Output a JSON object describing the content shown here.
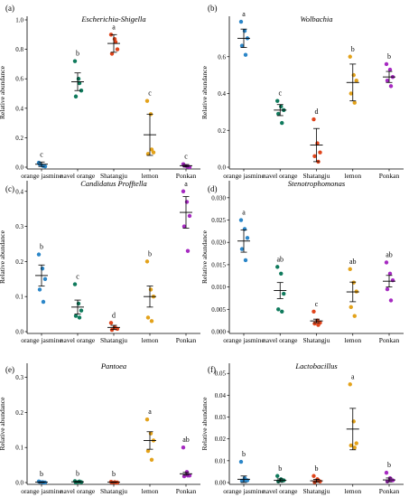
{
  "chart_data": [
    {
      "type": "scatter",
      "panel": "(a)",
      "title": "Escherichia-Shigella",
      "ylabel": "Relative abundance",
      "categories": [
        "orange jasmine",
        "navel orange",
        "Shatangju",
        "lemon",
        "Ponkan"
      ],
      "ylim": [
        0,
        1.0
      ],
      "yticks": [
        0.0,
        0.2,
        0.4,
        0.6,
        0.8,
        1.0
      ],
      "ytick_labels": [
        "0.0",
        "0.2",
        "0.4",
        "0.6",
        "0.8",
        "1.0"
      ],
      "colors": [
        "#2b86c8",
        "#0f7a5c",
        "#e0451c",
        "#e3a21a",
        "#a62ac1"
      ],
      "points": [
        [
          0.03,
          0.01,
          0.005,
          0.02,
          0.008
        ],
        [
          0.72,
          0.6,
          0.52,
          0.48,
          0.57
        ],
        [
          0.9,
          0.87,
          0.8,
          0.77,
          0.85
        ],
        [
          0.45,
          0.36,
          0.1,
          0.09,
          0.12
        ],
        [
          0.02,
          0.005,
          0.0,
          0.01,
          0.003
        ]
      ],
      "means": [
        0.02,
        0.58,
        0.84,
        0.22,
        0.01
      ],
      "errors": [
        0.015,
        0.06,
        0.06,
        0.14,
        0.008
      ],
      "letters": [
        "c",
        "b",
        "a",
        "c",
        "c"
      ]
    },
    {
      "type": "scatter",
      "panel": "(b)",
      "title": "Wolbachia",
      "ylabel": "Relative abundance",
      "categories": [
        "orange jasmine",
        "navel orange",
        "Shatangju",
        "lemon",
        "Ponkan"
      ],
      "ylim": [
        0,
        0.8
      ],
      "yticks": [
        0.0,
        0.2,
        0.4,
        0.6
      ],
      "ytick_labels": [
        "0.0",
        "0.2",
        "0.4",
        "0.6"
      ],
      "colors": [
        "#2b86c8",
        "#0f7a5c",
        "#e0451c",
        "#e3a21a",
        "#a62ac1"
      ],
      "points": [
        [
          0.79,
          0.74,
          0.7,
          0.66,
          0.61
        ],
        [
          0.36,
          0.33,
          0.31,
          0.29,
          0.24
        ],
        [
          0.26,
          0.13,
          0.08,
          0.06,
          0.03
        ],
        [
          0.6,
          0.5,
          0.47,
          0.4,
          0.35
        ],
        [
          0.56,
          0.53,
          0.49,
          0.47,
          0.44
        ]
      ],
      "means": [
        0.7,
        0.31,
        0.12,
        0.46,
        0.49
      ],
      "errors": [
        0.05,
        0.03,
        0.09,
        0.1,
        0.03
      ],
      "letters": [
        "a",
        "c",
        "d",
        "b",
        "b"
      ]
    },
    {
      "type": "scatter",
      "panel": "(c)",
      "title": "Candidatus Profftella",
      "ylabel": "Relative abundance",
      "categories": [
        "orange jasmine",
        "navel orange",
        "Shatangju",
        "lemon",
        "Ponkan"
      ],
      "ylim": [
        0,
        0.42
      ],
      "yticks": [
        0.0,
        0.1,
        0.2,
        0.3,
        0.4
      ],
      "ytick_labels": [
        "0.0",
        "0.1",
        "0.2",
        "0.3",
        "0.4"
      ],
      "colors": [
        "#2b86c8",
        "#0f7a5c",
        "#e0451c",
        "#e3a21a",
        "#a62ac1"
      ],
      "points": [
        [
          0.22,
          0.18,
          0.15,
          0.12,
          0.085
        ],
        [
          0.135,
          0.08,
          0.06,
          0.045,
          0.04
        ],
        [
          0.025,
          0.012,
          0.008,
          0.005,
          0.01
        ],
        [
          0.2,
          0.12,
          0.1,
          0.04,
          0.03
        ],
        [
          0.4,
          0.37,
          0.33,
          0.3,
          0.23
        ]
      ],
      "means": [
        0.16,
        0.07,
        0.012,
        0.1,
        0.34
      ],
      "errors": [
        0.03,
        0.02,
        0.006,
        0.03,
        0.045
      ],
      "letters": [
        "b",
        "c",
        "d",
        "b",
        "a"
      ]
    },
    {
      "type": "scatter",
      "panel": "(d)",
      "title": "Stenotrophomonas",
      "ylabel": "Relative abundance",
      "categories": [
        "orange jasmine",
        "navel orange",
        "Shatangju",
        "lemon",
        "Ponkan"
      ],
      "ylim": [
        0,
        0.033
      ],
      "yticks": [
        0.0,
        0.005,
        0.01,
        0.015,
        0.02,
        0.025,
        0.03
      ],
      "ytick_labels": [
        "0.000",
        "0.005",
        "0.010",
        "0.015",
        "0.020",
        "0.025",
        "0.030"
      ],
      "colors": [
        "#2b86c8",
        "#0f7a5c",
        "#e0451c",
        "#e3a21a",
        "#a62ac1"
      ],
      "points": [
        [
          0.025,
          0.023,
          0.021,
          0.0185,
          0.016
        ],
        [
          0.0145,
          0.013,
          0.0085,
          0.005,
          0.0045
        ],
        [
          0.0045,
          0.0025,
          0.002,
          0.0018,
          0.0015
        ],
        [
          0.014,
          0.011,
          0.009,
          0.0055,
          0.0035
        ],
        [
          0.0155,
          0.013,
          0.0115,
          0.0095,
          0.007
        ]
      ],
      "means": [
        0.0203,
        0.0092,
        0.0024,
        0.0089,
        0.0113
      ],
      "errors": [
        0.0025,
        0.0018,
        0.0004,
        0.0022,
        0.0013
      ],
      "letters": [
        "a",
        "ab",
        "c",
        "ab",
        "ab"
      ]
    },
    {
      "type": "scatter",
      "panel": "(e)",
      "title": "Pantoea",
      "ylabel": "Relative abundance",
      "categories": [
        "orange jasmine",
        "navel orange",
        "Shatangju",
        "lemon",
        "Ponkan"
      ],
      "ylim": [
        0,
        0.33
      ],
      "yticks": [
        0.0,
        0.1,
        0.2,
        0.3
      ],
      "ytick_labels": [
        "0.0",
        "0.1",
        "0.2",
        "0.3"
      ],
      "colors": [
        "#2b86c8",
        "#0f7a5c",
        "#e0451c",
        "#e3a21a",
        "#a62ac1"
      ],
      "points": [
        [
          0.003,
          0.001,
          0.0,
          0.002,
          0.0005
        ],
        [
          0.004,
          0.002,
          0.001,
          0.0,
          0.003
        ],
        [
          0.002,
          0.001,
          0.0,
          0.0005,
          0.0
        ],
        [
          0.18,
          0.14,
          0.12,
          0.09,
          0.065
        ],
        [
          0.1,
          0.03,
          0.02,
          0.018,
          0.02
        ]
      ],
      "means": [
        0.001,
        0.002,
        0.001,
        0.12,
        0.025
      ],
      "errors": [
        0.001,
        0.001,
        0.001,
        0.025,
        0.004
      ],
      "letters": [
        "b",
        "b",
        "b",
        "a",
        "ab"
      ]
    },
    {
      "type": "scatter",
      "panel": "(f)",
      "title": "Lactobacillus",
      "ylabel": "Relative abundance",
      "categories": [
        "orange jasmine",
        "navel orange",
        "Shatangju",
        "lemon",
        "Ponkan"
      ],
      "ylim": [
        0,
        0.053
      ],
      "yticks": [
        0.0,
        0.01,
        0.02,
        0.03,
        0.04,
        0.05
      ],
      "ytick_labels": [
        "0.00",
        "0.01",
        "0.02",
        "0.03",
        "0.04",
        "0.05"
      ],
      "colors": [
        "#2b86c8",
        "#0f7a5c",
        "#e0451c",
        "#e3a21a",
        "#a62ac1"
      ],
      "points": [
        [
          0.0095,
          0.002,
          0.001,
          0.0008,
          0.001
        ],
        [
          0.003,
          0.0015,
          0.001,
          0.0005,
          0.0008
        ],
        [
          0.003,
          0.0015,
          0.0005,
          0.0002,
          0.001
        ],
        [
          0.045,
          0.028,
          0.018,
          0.017,
          0.016
        ],
        [
          0.0045,
          0.002,
          0.001,
          0.0005,
          0.001
        ]
      ],
      "means": [
        0.0015,
        0.001,
        0.0008,
        0.0245,
        0.0012
      ],
      "errors": [
        0.0015,
        0.0007,
        0.0007,
        0.0095,
        0.0009
      ],
      "letters": [
        "b",
        "b",
        "b",
        "a",
        "b"
      ]
    }
  ]
}
